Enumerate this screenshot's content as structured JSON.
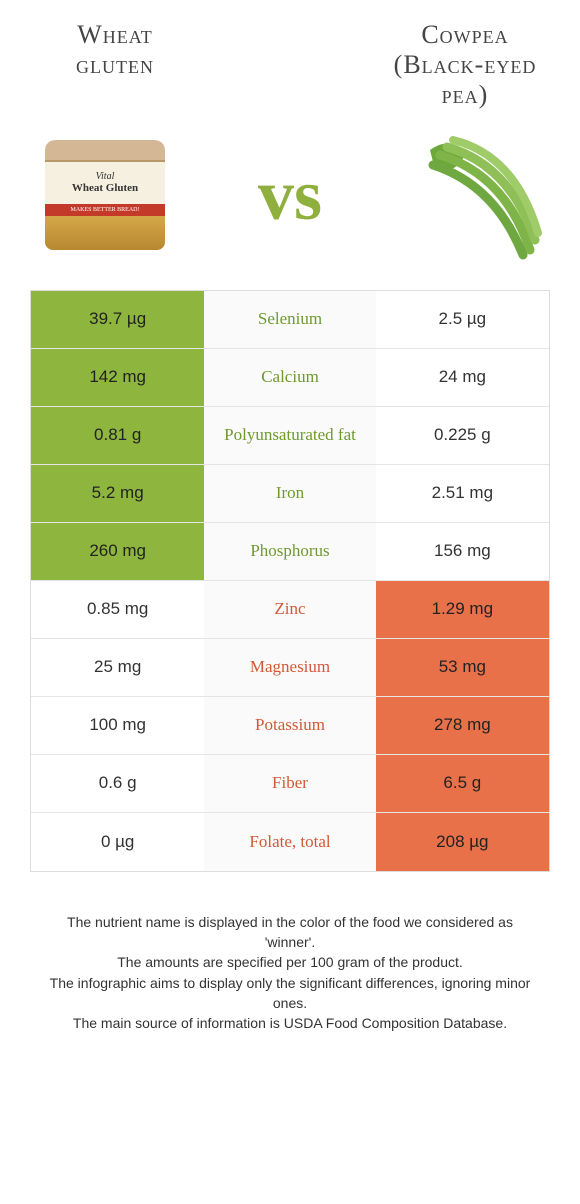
{
  "food_left": {
    "title_line1": "Wheat",
    "title_line2": "gluten"
  },
  "food_right": {
    "title_line1": "Cowpea",
    "title_line2": "(Black-eyed",
    "title_line3": "pea)"
  },
  "vs_text": "vs",
  "jar": {
    "brand": "Vital",
    "name": "Wheat Gluten",
    "band": "MAKES BETTER BREAD!"
  },
  "colors": {
    "left_win_bg": "#8eb63f",
    "right_win_bg": "#e8714a",
    "mid_green": "#6f9a2e",
    "mid_orange": "#d15a35",
    "vs_color": "#8fb03e",
    "border": "#e5e5e5",
    "mid_bg": "#fafafa"
  },
  "rows": [
    {
      "nutrient": "Selenium",
      "left": "39.7 µg",
      "right": "2.5 µg",
      "winner": "left"
    },
    {
      "nutrient": "Calcium",
      "left": "142 mg",
      "right": "24 mg",
      "winner": "left"
    },
    {
      "nutrient": "Polyunsaturated fat",
      "left": "0.81 g",
      "right": "0.225 g",
      "winner": "left"
    },
    {
      "nutrient": "Iron",
      "left": "5.2 mg",
      "right": "2.51 mg",
      "winner": "left"
    },
    {
      "nutrient": "Phosphorus",
      "left": "260 mg",
      "right": "156 mg",
      "winner": "left"
    },
    {
      "nutrient": "Zinc",
      "left": "0.85 mg",
      "right": "1.29 mg",
      "winner": "right"
    },
    {
      "nutrient": "Magnesium",
      "left": "25 mg",
      "right": "53 mg",
      "winner": "right"
    },
    {
      "nutrient": "Potassium",
      "left": "100 mg",
      "right": "278 mg",
      "winner": "right"
    },
    {
      "nutrient": "Fiber",
      "left": "0.6 g",
      "right": "6.5 g",
      "winner": "right"
    },
    {
      "nutrient": "Folate, total",
      "left": "0 µg",
      "right": "208 µg",
      "winner": "right"
    }
  ],
  "footer": {
    "l1": "The nutrient name is displayed in the color of the food we considered as 'winner'.",
    "l2": "The amounts are specified per 100 gram of the product.",
    "l3": "The infographic aims to display only the significant differences, ignoring minor ones.",
    "l4": "The main source of information is USDA Food Composition Database."
  }
}
